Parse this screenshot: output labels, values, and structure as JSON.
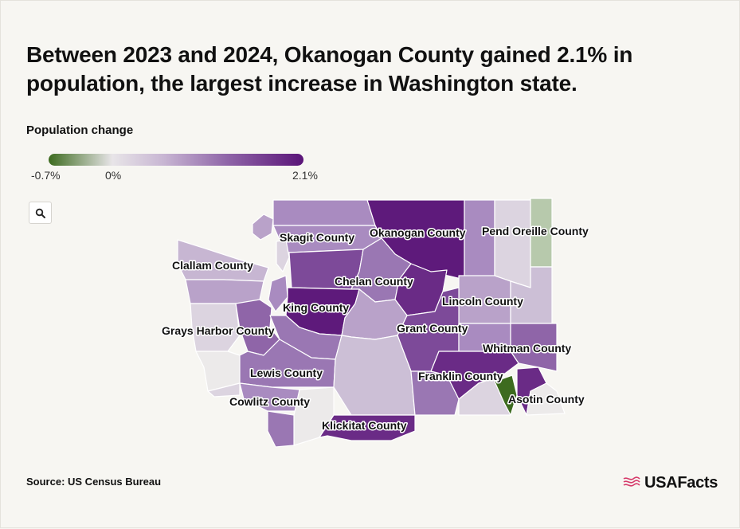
{
  "title": "Between 2023 and 2024, Okanogan County gained 2.1% in population, the largest increase in Washington state.",
  "legend": {
    "title": "Population change",
    "min_label": "-0.7%",
    "zero_label": "0%",
    "max_label": "2.1%",
    "colors": {
      "negative": "#3d6b1f",
      "zero": "#e8e5e8",
      "positive": "#5a1478"
    }
  },
  "zoom_button": {
    "icon": "search-icon"
  },
  "labels": {
    "skagit": "Skagit County",
    "okanogan": "Okanogan County",
    "pend_oreille": "Pend Oreille County",
    "clallam": "Clallam County",
    "chelan": "Chelan County",
    "king": "King County",
    "lincoln": "Lincoln County",
    "grays_harbor": "Grays Harbor County",
    "grant": "Grant County",
    "whitman": "Whitman County",
    "lewis": "Lewis County",
    "franklin": "Franklin County",
    "cowlitz": "Cowlitz County",
    "asotin": "Asotin County",
    "klickitat": "Klickitat County"
  },
  "highlight": {
    "county": "Okanogan County",
    "value": "2.1%"
  },
  "source": "Source: US Census Bureau",
  "logo": {
    "text": "USAFacts",
    "icon": "usafacts-flag-icon",
    "color": "#d63a6a"
  }
}
